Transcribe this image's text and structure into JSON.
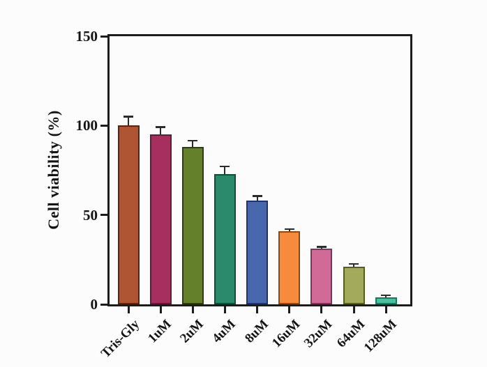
{
  "figure": {
    "background_color": "#fcfcfc",
    "axis_color": "#1c1c1c",
    "text_color": "#141414",
    "error_bar_color": "#2b2b2b"
  },
  "chart_data": {
    "type": "bar",
    "title": "",
    "xlabel": "",
    "ylabel": "Cell viability (%)",
    "ylim": [
      0,
      150
    ],
    "yticks": [
      0,
      50,
      100,
      150
    ],
    "ytick_labels": [
      "0",
      "50",
      "100",
      "150"
    ],
    "grid": false,
    "legend_position": "none",
    "categories": [
      "Tris-Gly",
      "1uM",
      "2uM",
      "4uM",
      "8uM",
      "16uM",
      "32uM",
      "64uM",
      "128uM"
    ],
    "values": [
      100,
      95,
      88,
      73,
      58,
      41,
      31,
      21,
      4
    ],
    "errors_plus": [
      5,
      4,
      3.5,
      4,
      2.5,
      1,
      1,
      1.5,
      1
    ],
    "bar_fill_colors": [
      "#AF5534",
      "#A72F60",
      "#64802B",
      "#2B8A6C",
      "#4867AD",
      "#F78B3D",
      "#D16A96",
      "#A3AA5C",
      "#4CC0A1"
    ],
    "bar_border_colors": [
      "#5C2410",
      "#611A38",
      "#2F3D0C",
      "#0E4D3A",
      "#1F3567",
      "#8A4A10",
      "#7E3358",
      "#555C20",
      "#117C5F"
    ]
  }
}
